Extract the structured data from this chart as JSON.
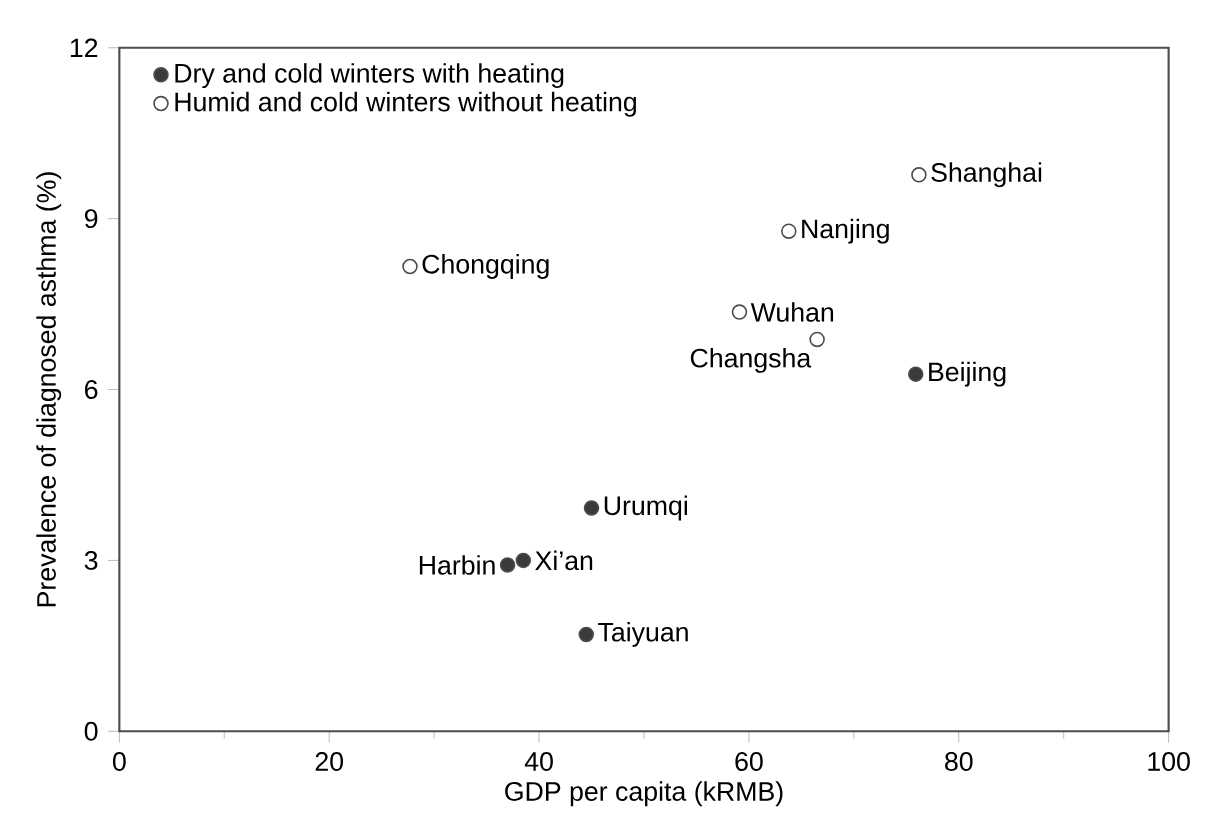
{
  "chart_data": {
    "type": "scatter",
    "xlabel": "GDP per capita (kRMB)",
    "ylabel": "Prevalence of diagnosed asthma (%)",
    "xlim": [
      0,
      100
    ],
    "xticks": [
      0,
      20,
      40,
      60,
      80,
      100
    ],
    "ylim": [
      0,
      12
    ],
    "yticks": [
      0,
      3,
      6,
      9,
      12
    ],
    "legend": "top left",
    "grid": false,
    "series": [
      {
        "name": "Dry and cold winters with heating",
        "color": "#3a3a3a",
        "x": [
          75.9,
          45.0,
          38.5,
          37.0,
          44.5
        ],
        "values": [
          6.27,
          3.92,
          3.0,
          2.92,
          1.7
        ]
      },
      {
        "name": "Humid and cold winters without heating",
        "color": "#ffffff",
        "x": [
          76.2,
          63.8,
          27.7,
          59.1,
          66.5
        ],
        "values": [
          9.77,
          8.78,
          8.16,
          7.36,
          6.88
        ]
      }
    ],
    "annotations": [
      {
        "text": "Shanghai",
        "x": 76.2,
        "y": 9.77
      },
      {
        "text": "Nanjing",
        "x": 63.8,
        "y": 8.78
      },
      {
        "text": "Chongqing",
        "x": 27.7,
        "y": 8.16
      },
      {
        "text": "Wuhan",
        "x": 59.1,
        "y": 7.36
      },
      {
        "text": "Changsha",
        "x": 66.5,
        "y": 6.88
      },
      {
        "text": "Beijing",
        "x": 75.9,
        "y": 6.27
      },
      {
        "text": "Urumqi",
        "x": 45.0,
        "y": 3.92
      },
      {
        "text": "Xi’an",
        "x": 38.5,
        "y": 3.0
      },
      {
        "text": "Harbin",
        "x": 37.0,
        "y": 2.92
      },
      {
        "text": "Taiyuan",
        "x": 44.5,
        "y": 1.7
      }
    ]
  }
}
